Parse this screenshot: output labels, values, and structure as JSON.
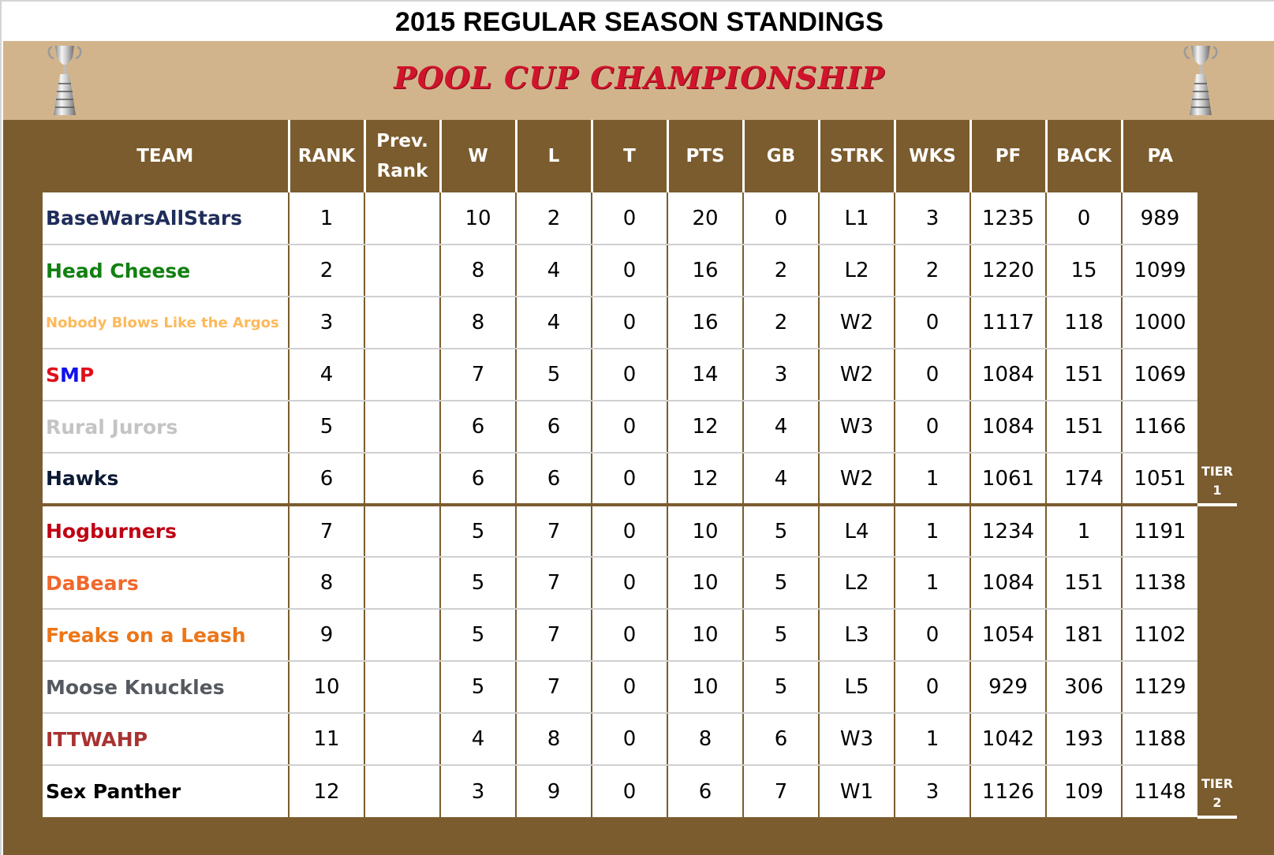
{
  "header": {
    "title": "2015 REGULAR SEASON STANDINGS",
    "subtitle": "POOL CUP CHAMPIONSHIP",
    "decor_icon": "trophy-icon"
  },
  "colors": {
    "header_bg": "#7b5c2e",
    "banner_bg": "#d2b48c",
    "subtitle": "#d0142c"
  },
  "columns": [
    "TEAM",
    "RANK",
    "Prev. Rank",
    "W",
    "L",
    "T",
    "PTS",
    "GB",
    "STRK",
    "WKS",
    "PF",
    "BACK",
    "PA"
  ],
  "column_labels": {
    "team": "TEAM",
    "rank": "RANK",
    "prev_rank_line1": "Prev.",
    "prev_rank_line2": "Rank",
    "w": "W",
    "l": "L",
    "t": "T",
    "pts": "PTS",
    "gb": "GB",
    "strk": "STRK",
    "wks": "WKS",
    "pf": "PF",
    "back": "BACK",
    "pa": "PA"
  },
  "tiers": [
    {
      "line1": "TIER",
      "line2": "1"
    },
    {
      "line1": "TIER",
      "line2": "2"
    }
  ],
  "rows": [
    {
      "team": "BaseWarsAllStars",
      "color": "#1f2d5a",
      "rank": "1",
      "prev_rank": "",
      "w": "10",
      "l": "2",
      "t": "0",
      "pts": "20",
      "gb": "0",
      "strk": "L1",
      "wks": "3",
      "pf": "1235",
      "back": "0",
      "pa": "989"
    },
    {
      "team": "Head Cheese",
      "color": "#118011",
      "rank": "2",
      "prev_rank": "",
      "w": "8",
      "l": "4",
      "t": "0",
      "pts": "16",
      "gb": "2",
      "strk": "L2",
      "wks": "2",
      "pf": "1220",
      "back": "15",
      "pa": "1099"
    },
    {
      "team": "Nobody Blows Like the Argos",
      "color": "#fdb95b",
      "rank": "3",
      "prev_rank": "",
      "w": "8",
      "l": "4",
      "t": "0",
      "pts": "16",
      "gb": "2",
      "strk": "W2",
      "wks": "0",
      "pf": "1117",
      "back": "118",
      "pa": "1000"
    },
    {
      "team": "SMP",
      "color": "#e0101a",
      "team_parts": [
        "S",
        "M",
        "P"
      ],
      "team_part_colors": [
        "#e0101a",
        "#1010f0",
        "#e0101a"
      ],
      "rank": "4",
      "prev_rank": "",
      "w": "7",
      "l": "5",
      "t": "0",
      "pts": "14",
      "gb": "3",
      "strk": "W2",
      "wks": "0",
      "pf": "1084",
      "back": "151",
      "pa": "1069"
    },
    {
      "team": "Rural Jurors",
      "color": "#c4c4c4",
      "rank": "5",
      "prev_rank": "",
      "w": "6",
      "l": "6",
      "t": "0",
      "pts": "12",
      "gb": "4",
      "strk": "W3",
      "wks": "0",
      "pf": "1084",
      "back": "151",
      "pa": "1166"
    },
    {
      "team": "Hawks",
      "color": "#0c1a33",
      "rank": "6",
      "prev_rank": "",
      "w": "6",
      "l": "6",
      "t": "0",
      "pts": "12",
      "gb": "4",
      "strk": "W2",
      "wks": "1",
      "pf": "1061",
      "back": "174",
      "pa": "1051"
    },
    {
      "team": "Hogburners",
      "color": "#c00014",
      "rank": "7",
      "prev_rank": "",
      "w": "5",
      "l": "7",
      "t": "0",
      "pts": "10",
      "gb": "5",
      "strk": "L4",
      "wks": "1",
      "pf": "1234",
      "back": "1",
      "pa": "1191"
    },
    {
      "team": "DaBears",
      "color": "#f0682c",
      "rank": "8",
      "prev_rank": "",
      "w": "5",
      "l": "7",
      "t": "0",
      "pts": "10",
      "gb": "5",
      "strk": "L2",
      "wks": "1",
      "pf": "1084",
      "back": "151",
      "pa": "1138"
    },
    {
      "team": "Freaks on a Leash",
      "color": "#ec7618",
      "rank": "9",
      "prev_rank": "",
      "w": "5",
      "l": "7",
      "t": "0",
      "pts": "10",
      "gb": "5",
      "strk": "L3",
      "wks": "0",
      "pf": "1054",
      "back": "181",
      "pa": "1102"
    },
    {
      "team": "Moose Knuckles",
      "color": "#555a60",
      "rank": "10",
      "prev_rank": "",
      "w": "5",
      "l": "7",
      "t": "0",
      "pts": "10",
      "gb": "5",
      "strk": "L5",
      "wks": "0",
      "pf": "929",
      "back": "306",
      "pa": "1129"
    },
    {
      "team": "ITTWAHP",
      "color": "#a83232",
      "rank": "11",
      "prev_rank": "",
      "w": "4",
      "l": "8",
      "t": "0",
      "pts": "8",
      "gb": "6",
      "strk": "W3",
      "wks": "1",
      "pf": "1042",
      "back": "193",
      "pa": "1188"
    },
    {
      "team": "Sex Panther",
      "color": "#000000",
      "rank": "12",
      "prev_rank": "",
      "w": "3",
      "l": "9",
      "t": "0",
      "pts": "6",
      "gb": "7",
      "strk": "W1",
      "wks": "3",
      "pf": "1126",
      "back": "109",
      "pa": "1148"
    }
  ]
}
